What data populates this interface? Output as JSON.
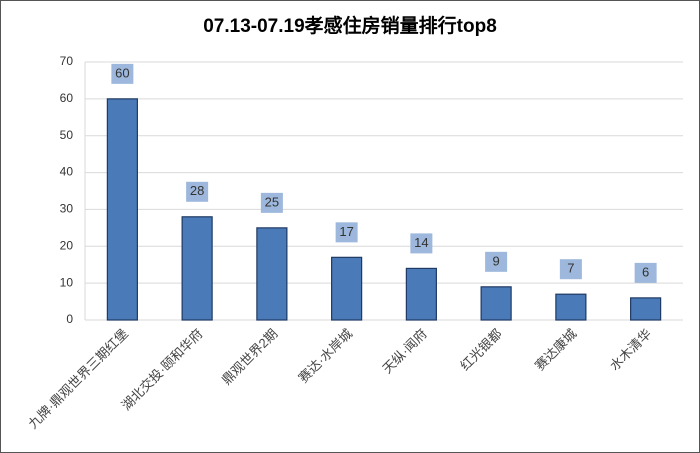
{
  "chart_data": {
    "type": "bar",
    "title": "07.13-07.19孝感住房销量排行top8",
    "categories": [
      "九牌·鼎观世界三期红堡",
      "湖北交投·颐和华府",
      "鼎观世界2期",
      "赛达·水岸城",
      "天纵·闻府",
      "红光银都",
      "赛达康城",
      "水木清华"
    ],
    "values": [
      60,
      28,
      25,
      17,
      14,
      9,
      7,
      6
    ],
    "color": "#4a7ab8",
    "ylim": [
      0,
      70
    ],
    "yticks": [
      0,
      10,
      20,
      30,
      40,
      50,
      60,
      70
    ],
    "grid": true
  }
}
